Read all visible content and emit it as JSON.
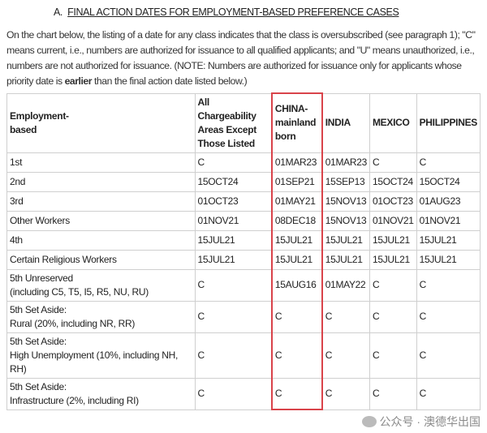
{
  "section": {
    "prefix": "A.",
    "title": "FINAL ACTION DATES FOR EMPLOYMENT-BASED PREFERENCE CASES"
  },
  "paragraph": {
    "before_bold": "On the chart below, the listing of a date for any class indicates that the class is oversubscribed (see paragraph 1); \"C\" means current, i.e., numbers are authorized for issuance to all qualified applicants; and \"U\" means unauthorized, i.e., numbers are not authorized for issuance. (NOTE: Numbers are authorized for issuance only for applicants whose priority date is ",
    "bold": "earlier",
    "after_bold": " than the final action date listed below.)"
  },
  "table": {
    "headers": [
      "Employment-\nbased",
      "All Chargeability\nAreas Except\nThose Listed",
      "CHINA-\nmainland\nborn",
      "INDIA",
      "MEXICO",
      "PHILIPPINES"
    ],
    "rows": [
      [
        "1st",
        "C",
        "01MAR23",
        "01MAR23",
        "C",
        "C"
      ],
      [
        "2nd",
        "15OCT24",
        "01SEP21",
        "15SEP13",
        "15OCT24",
        "15OCT24"
      ],
      [
        "3rd",
        "01OCT23",
        "01MAY21",
        "15NOV13",
        "01OCT23",
        "01AUG23"
      ],
      [
        "Other Workers",
        "01NOV21",
        "08DEC18",
        "15NOV13",
        "01NOV21",
        "01NOV21"
      ],
      [
        "4th",
        "15JUL21",
        "15JUL21",
        "15JUL21",
        "15JUL21",
        "15JUL21"
      ],
      [
        "Certain Religious Workers",
        "15JUL21",
        "15JUL21",
        "15JUL21",
        "15JUL21",
        "15JUL21"
      ],
      [
        "5th Unreserved\n(including C5, T5, I5, R5, NU, RU)",
        "C",
        "15AUG16",
        "01MAY22",
        "C",
        "C"
      ],
      [
        "5th Set Aside:\nRural (20%, including NR, RR)",
        "C",
        "C",
        "C",
        "C",
        "C"
      ],
      [
        "5th Set Aside:\nHigh Unemployment (10%, including NH, RH)",
        "C",
        "C",
        "C",
        "C",
        "C"
      ],
      [
        "5th Set Aside:\nInfrastructure (2%, including RI)",
        "C",
        "C",
        "C",
        "C",
        "C"
      ]
    ],
    "highlight_color": "#d9434a"
  },
  "watermark": "公众号 · 澳德华出国"
}
